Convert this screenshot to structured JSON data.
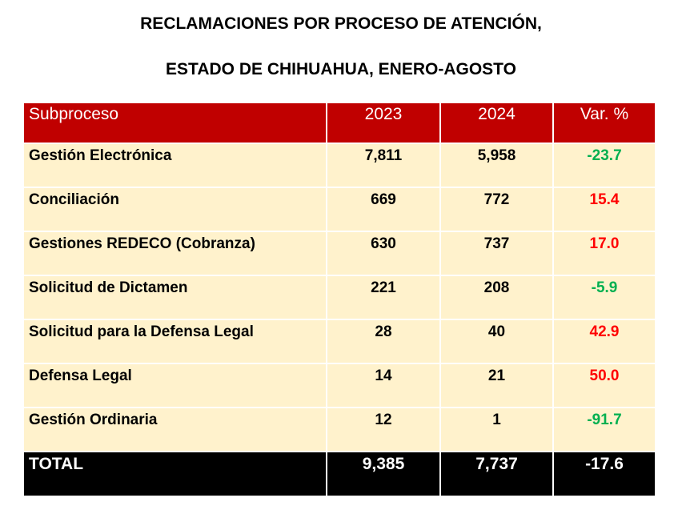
{
  "title_line1": "RECLAMACIONES POR PROCESO DE ATENCIÓN,",
  "title_line2": "ESTADO DE CHIHUAHUA, ENERO-AGOSTO",
  "headers": [
    "Subproceso",
    "2023",
    "2024",
    "Var. %"
  ],
  "rows": [
    {
      "name": "Gestión Electrónica",
      "y2023": "7,811",
      "y2024": "5,958",
      "var": "-23.7",
      "trend": "neg"
    },
    {
      "name": "Conciliación",
      "y2023": "669",
      "y2024": "772",
      "var": "15.4",
      "trend": "pos"
    },
    {
      "name": "Gestiones REDECO (Cobranza)",
      "y2023": "630",
      "y2024": "737",
      "var": "17.0",
      "trend": "pos"
    },
    {
      "name": "Solicitud de Dictamen",
      "y2023": "221",
      "y2024": "208",
      "var": "-5.9",
      "trend": "neg"
    },
    {
      "name": "Solicitud para la Defensa Legal",
      "y2023": "28",
      "y2024": "40",
      "var": "42.9",
      "trend": "pos"
    },
    {
      "name": "Defensa Legal",
      "y2023": "14",
      "y2024": "21",
      "var": "50.0",
      "trend": "pos"
    },
    {
      "name": "Gestión Ordinaria",
      "y2023": "12",
      "y2024": "1",
      "var": "-91.7",
      "trend": "neg"
    }
  ],
  "total": {
    "name": "TOTAL",
    "y2023": "9,385",
    "y2024": "7,737",
    "var": "-17.6"
  },
  "colors": {
    "header": "#C00000",
    "row": "#FFF2CC",
    "negative": "#00B050",
    "positive": "#FF0000",
    "total": "#000000"
  }
}
